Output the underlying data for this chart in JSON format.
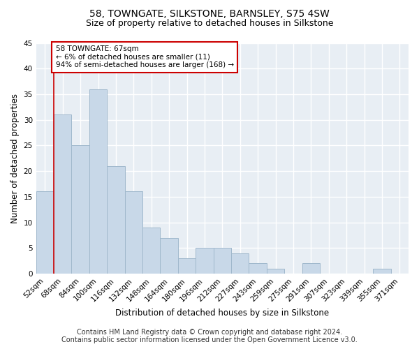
{
  "title": "58, TOWNGATE, SILKSTONE, BARNSLEY, S75 4SW",
  "subtitle": "Size of property relative to detached houses in Silkstone",
  "xlabel": "Distribution of detached houses by size in Silkstone",
  "ylabel": "Number of detached properties",
  "categories": [
    "52sqm",
    "68sqm",
    "84sqm",
    "100sqm",
    "116sqm",
    "132sqm",
    "148sqm",
    "164sqm",
    "180sqm",
    "196sqm",
    "212sqm",
    "227sqm",
    "243sqm",
    "259sqm",
    "275sqm",
    "291sqm",
    "307sqm",
    "323sqm",
    "339sqm",
    "355sqm",
    "371sqm"
  ],
  "values": [
    16,
    31,
    25,
    36,
    21,
    16,
    9,
    7,
    3,
    5,
    5,
    4,
    2,
    1,
    0,
    2,
    0,
    0,
    0,
    1,
    0
  ],
  "bar_color": "#c8d8e8",
  "bar_edge_color": "#a0b8cc",
  "marker_label": "58 TOWNGATE: 67sqm",
  "marker_line1": "← 6% of detached houses are smaller (11)",
  "marker_line2": "94% of semi-detached houses are larger (168) →",
  "marker_color": "#cc0000",
  "ylim": [
    0,
    45
  ],
  "yticks": [
    0,
    5,
    10,
    15,
    20,
    25,
    30,
    35,
    40,
    45
  ],
  "footer_line1": "Contains HM Land Registry data © Crown copyright and database right 2024.",
  "footer_line2": "Contains public sector information licensed under the Open Government Licence v3.0.",
  "background_color": "#ffffff",
  "plot_background_color": "#e8eef4",
  "grid_color": "#ffffff",
  "title_fontsize": 10,
  "subtitle_fontsize": 9,
  "axis_label_fontsize": 8.5,
  "tick_fontsize": 7.5,
  "footer_fontsize": 7
}
